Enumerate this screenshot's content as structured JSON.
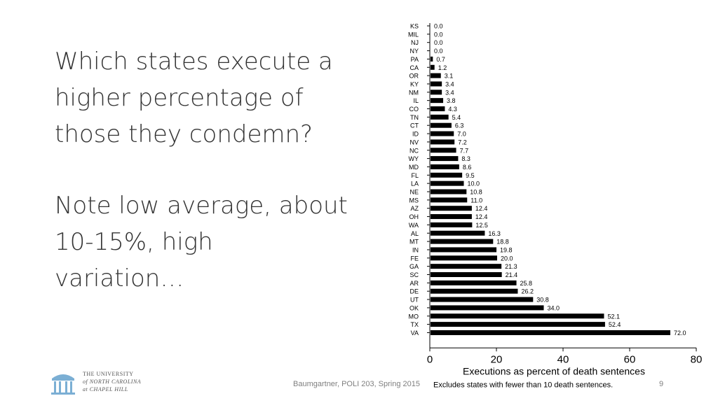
{
  "slide": {
    "heading": "Which states execute a higher percentage of those they condemn?",
    "note": "Note low average, about 10-15%, high variation…",
    "footer": "Baumgartner, POLI 203, Spring 2015",
    "page_number": "9"
  },
  "logo": {
    "line1": "THE UNIVERSITY",
    "line2": "of NORTH CAROLINA",
    "line3": "at CHAPEL HILL"
  },
  "chart_data": {
    "type": "bar",
    "orientation": "horizontal",
    "categories": [
      "KS",
      "MIL",
      "NJ",
      "NY",
      "PA",
      "CA",
      "OR",
      "KY",
      "NM",
      "IL",
      "CO",
      "TN",
      "CT",
      "ID",
      "NV",
      "NC",
      "WY",
      "MD",
      "FL",
      "LA",
      "NE",
      "MS",
      "AZ",
      "OH",
      "WA",
      "AL",
      "MT",
      "IN",
      "FE",
      "GA",
      "SC",
      "AR",
      "DE",
      "UT",
      "OK",
      "MO",
      "TX",
      "VA"
    ],
    "values": [
      0.0,
      0.0,
      0.0,
      0.0,
      0.7,
      1.2,
      3.1,
      3.4,
      3.4,
      3.8,
      4.3,
      5.4,
      6.3,
      7.0,
      7.2,
      7.7,
      8.3,
      8.6,
      9.5,
      10.0,
      10.8,
      11.0,
      12.4,
      12.4,
      12.5,
      16.3,
      18.8,
      19.8,
      20.0,
      21.3,
      21.4,
      25.8,
      26.2,
      30.8,
      34.0,
      52.1,
      52.4,
      72.0
    ],
    "value_labels": [
      "0.0",
      "0.0",
      "0.0",
      "0.0",
      "0.7",
      "1.2",
      "3.1",
      "3.4",
      "3.4",
      "3.8",
      "4.3",
      "5.4",
      "6.3",
      "7.0",
      "7.2",
      "7.7",
      "8.3",
      "8.6",
      "9.5",
      "10.0",
      "10.8",
      "11.0",
      "12.4",
      "12.4",
      "12.5",
      "16.3",
      "18.8",
      "19.8",
      "20.0",
      "21.3",
      "21.4",
      "25.8",
      "26.2",
      "30.8",
      "34.0",
      "52.1",
      "52.4",
      "72.0"
    ],
    "xlabel": "Executions as percent of death sentences",
    "note": "Excludes states with fewer than 10 death sentences.",
    "xlim": [
      0,
      80
    ],
    "xticks": [
      "0",
      "20",
      "40",
      "60",
      "80"
    ],
    "grid": false,
    "bar_color": "#000000"
  }
}
